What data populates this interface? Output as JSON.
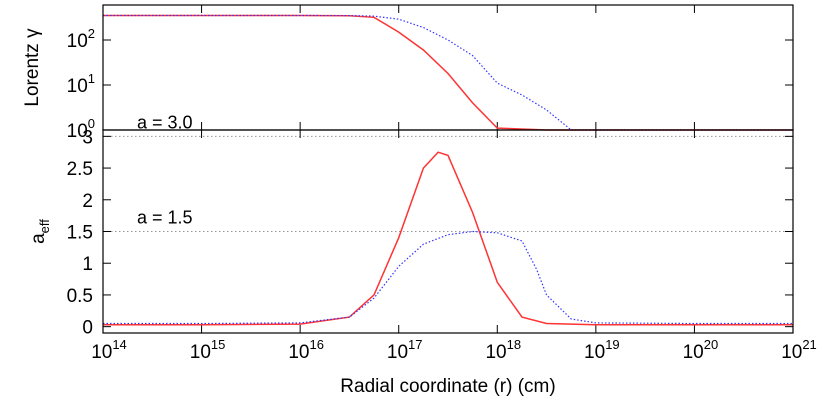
{
  "chart_data": [
    {
      "type": "line",
      "ylabel": "Lorentz γ",
      "log_x": true,
      "log_y": true,
      "xlim": [
        100000000000000.0,
        1e+21
      ],
      "ylim": [
        1,
        600
      ],
      "yticks": [
        {
          "value": 1,
          "label": "10",
          "exponent": "0"
        },
        {
          "value": 10,
          "label": "10",
          "exponent": "1"
        },
        {
          "value": 100,
          "label": "10",
          "exponent": "2"
        }
      ],
      "series": [
        {
          "color": "#ff3333",
          "style": "solid",
          "x": [
            100000000000000.0,
            1000000000000000.0,
            1e+16,
            3.16e+16,
            5.62e+16,
            1e+17,
            1.78e+17,
            3.16e+17,
            5.62e+17,
            1e+18,
            3.16e+18,
            1e+19,
            1e+20,
            1e+21
          ],
          "values": [
            350,
            350,
            350,
            345,
            320,
            150,
            60,
            18,
            4,
            1.1,
            1,
            1,
            1,
            1
          ]
        },
        {
          "color": "#3333ff",
          "style": "dotted",
          "x": [
            100000000000000.0,
            1000000000000000.0,
            1e+16,
            3.16e+16,
            5.62e+16,
            1e+17,
            1.78e+17,
            3.16e+17,
            5.62e+17,
            1e+18,
            1.78e+18,
            3.16e+18,
            5.62e+18,
            1e+19,
            1e+20,
            1e+21
          ],
          "values": [
            350,
            350,
            350,
            348,
            340,
            290,
            190,
            100,
            45,
            11,
            6,
            2.8,
            1,
            1,
            1,
            1
          ]
        }
      ]
    },
    {
      "type": "line",
      "ylabel": "a",
      "ylabel_sub": "eff",
      "xlabel": "Radial coordinate (r) (cm)",
      "log_x": true,
      "xlim": [
        100000000000000.0,
        1e+21
      ],
      "ylim": [
        -0.1,
        3.1
      ],
      "xticks": [
        {
          "value": 100000000000000.0,
          "label": "10",
          "exponent": "14"
        },
        {
          "value": 1000000000000000.0,
          "label": "10",
          "exponent": "15"
        },
        {
          "value": 1e+16,
          "label": "10",
          "exponent": "16"
        },
        {
          "value": 1e+17,
          "label": "10",
          "exponent": "17"
        },
        {
          "value": 1e+18,
          "label": "10",
          "exponent": "18"
        },
        {
          "value": 1e+19,
          "label": "10",
          "exponent": "19"
        },
        {
          "value": 1e+20,
          "label": "10",
          "exponent": "20"
        },
        {
          "value": 1e+21,
          "label": "10",
          "exponent": "21"
        }
      ],
      "yticks": [
        0,
        0.5,
        1,
        1.5,
        2,
        2.5,
        3
      ],
      "hlines": [
        3,
        1.5
      ],
      "annotations": [
        {
          "text": "a = 3.0",
          "y": 3
        },
        {
          "text": "a = 1.5",
          "y": 1.5
        }
      ],
      "series": [
        {
          "color": "#ff3333",
          "style": "solid",
          "x": [
            100000000000000.0,
            1000000000000000.0,
            1e+16,
            3.16e+16,
            5.62e+16,
            1e+17,
            1.78e+17,
            2.51e+17,
            3.16e+17,
            5.62e+17,
            1e+18,
            1.78e+18,
            3.16e+18,
            1e+19,
            1e+20,
            1e+21
          ],
          "values": [
            0.03,
            0.03,
            0.04,
            0.15,
            0.5,
            1.4,
            2.5,
            2.75,
            2.7,
            1.8,
            0.7,
            0.15,
            0.05,
            0.03,
            0.03,
            0.03
          ]
        },
        {
          "color": "#3333ff",
          "style": "dotted",
          "x": [
            100000000000000.0,
            1000000000000000.0,
            1e+16,
            3.16e+16,
            5.62e+16,
            1e+17,
            1.78e+17,
            3.16e+17,
            5.62e+17,
            1e+18,
            1.78e+18,
            2.51e+18,
            3.16e+18,
            5.62e+18,
            1e+19,
            1e+20,
            1e+21
          ],
          "values": [
            0.05,
            0.05,
            0.06,
            0.15,
            0.45,
            0.95,
            1.3,
            1.45,
            1.5,
            1.48,
            1.35,
            0.9,
            0.5,
            0.12,
            0.06,
            0.05,
            0.05
          ]
        }
      ]
    }
  ]
}
